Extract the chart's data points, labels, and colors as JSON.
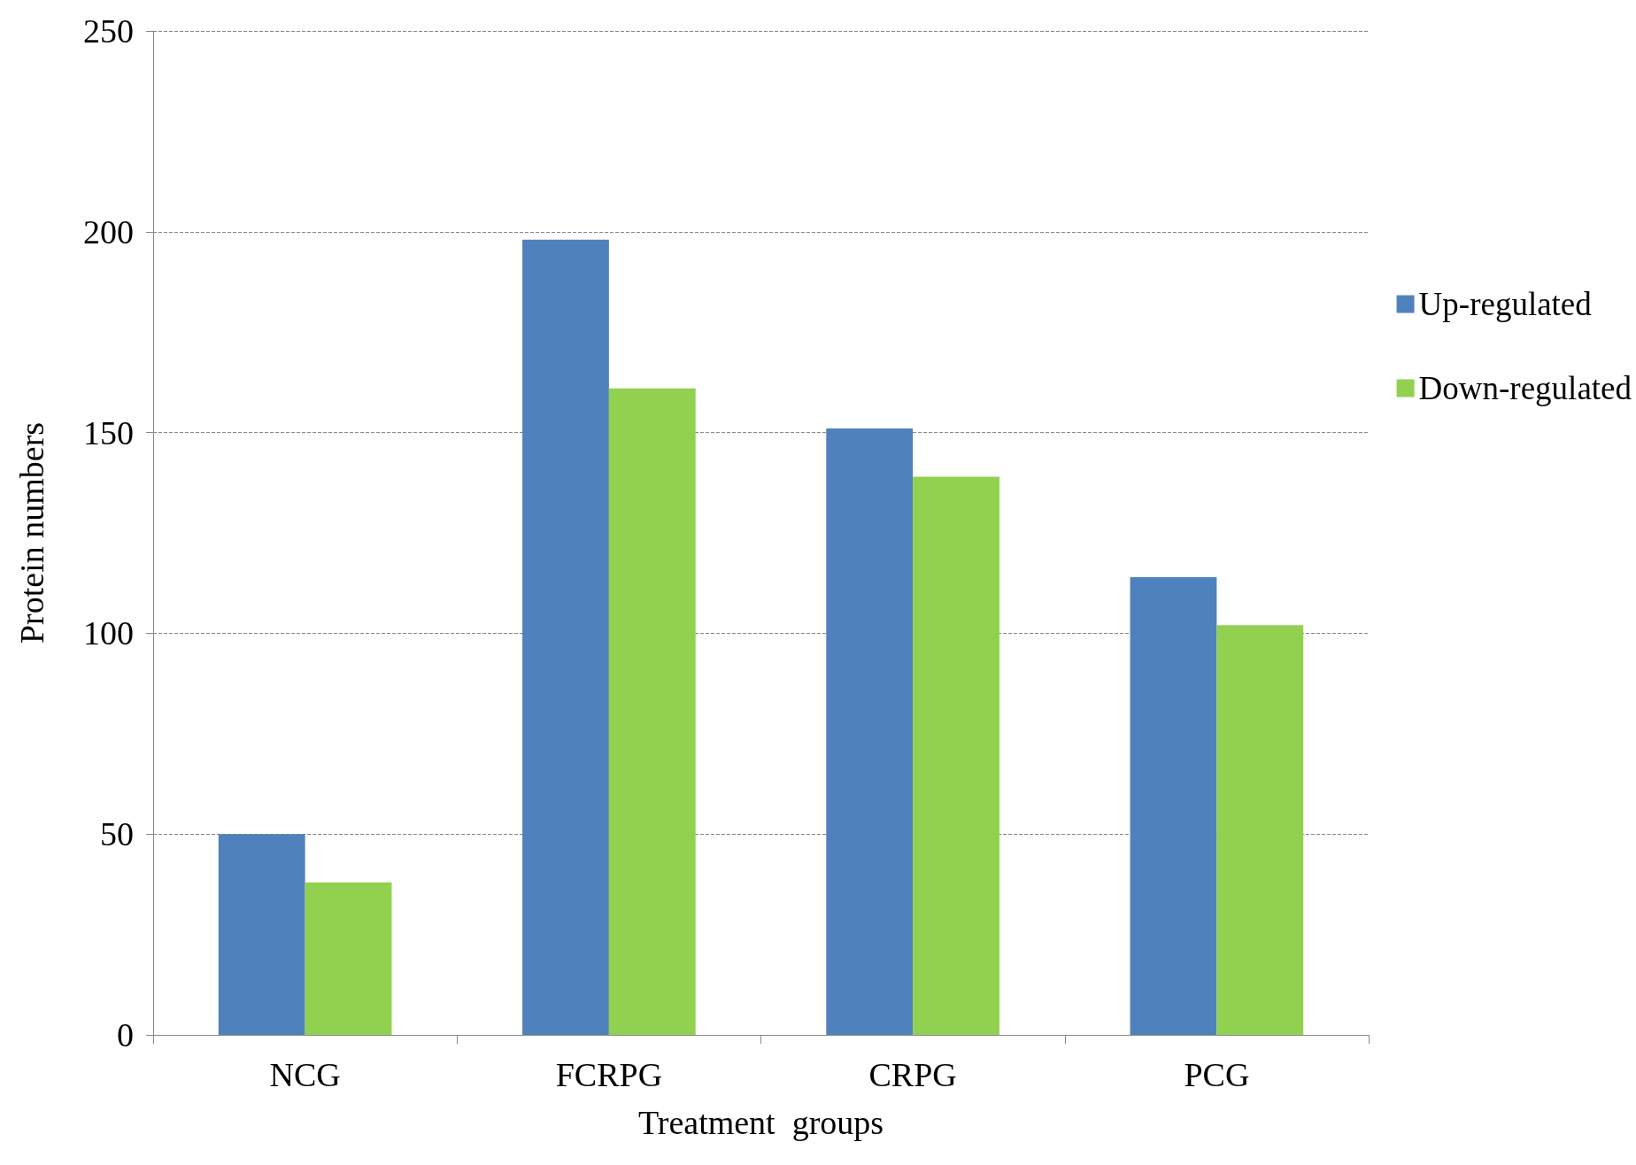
{
  "chart_data": {
    "type": "bar",
    "xlabel": "Treatment  groups",
    "ylabel": "Protein numbers",
    "categories": [
      "NCG",
      "FCRPG",
      "CRPG",
      "PCG"
    ],
    "series": [
      {
        "name": "Up-regulated",
        "color": "#4f81bd",
        "values": [
          50,
          198,
          151,
          114
        ]
      },
      {
        "name": "Down-regulated",
        "color": "#92d050",
        "values": [
          38,
          161,
          139,
          102
        ]
      }
    ],
    "ylim": [
      0,
      250
    ],
    "yticks": [
      0,
      50,
      100,
      150,
      200,
      250
    ],
    "grid": "y",
    "legend": "right"
  }
}
